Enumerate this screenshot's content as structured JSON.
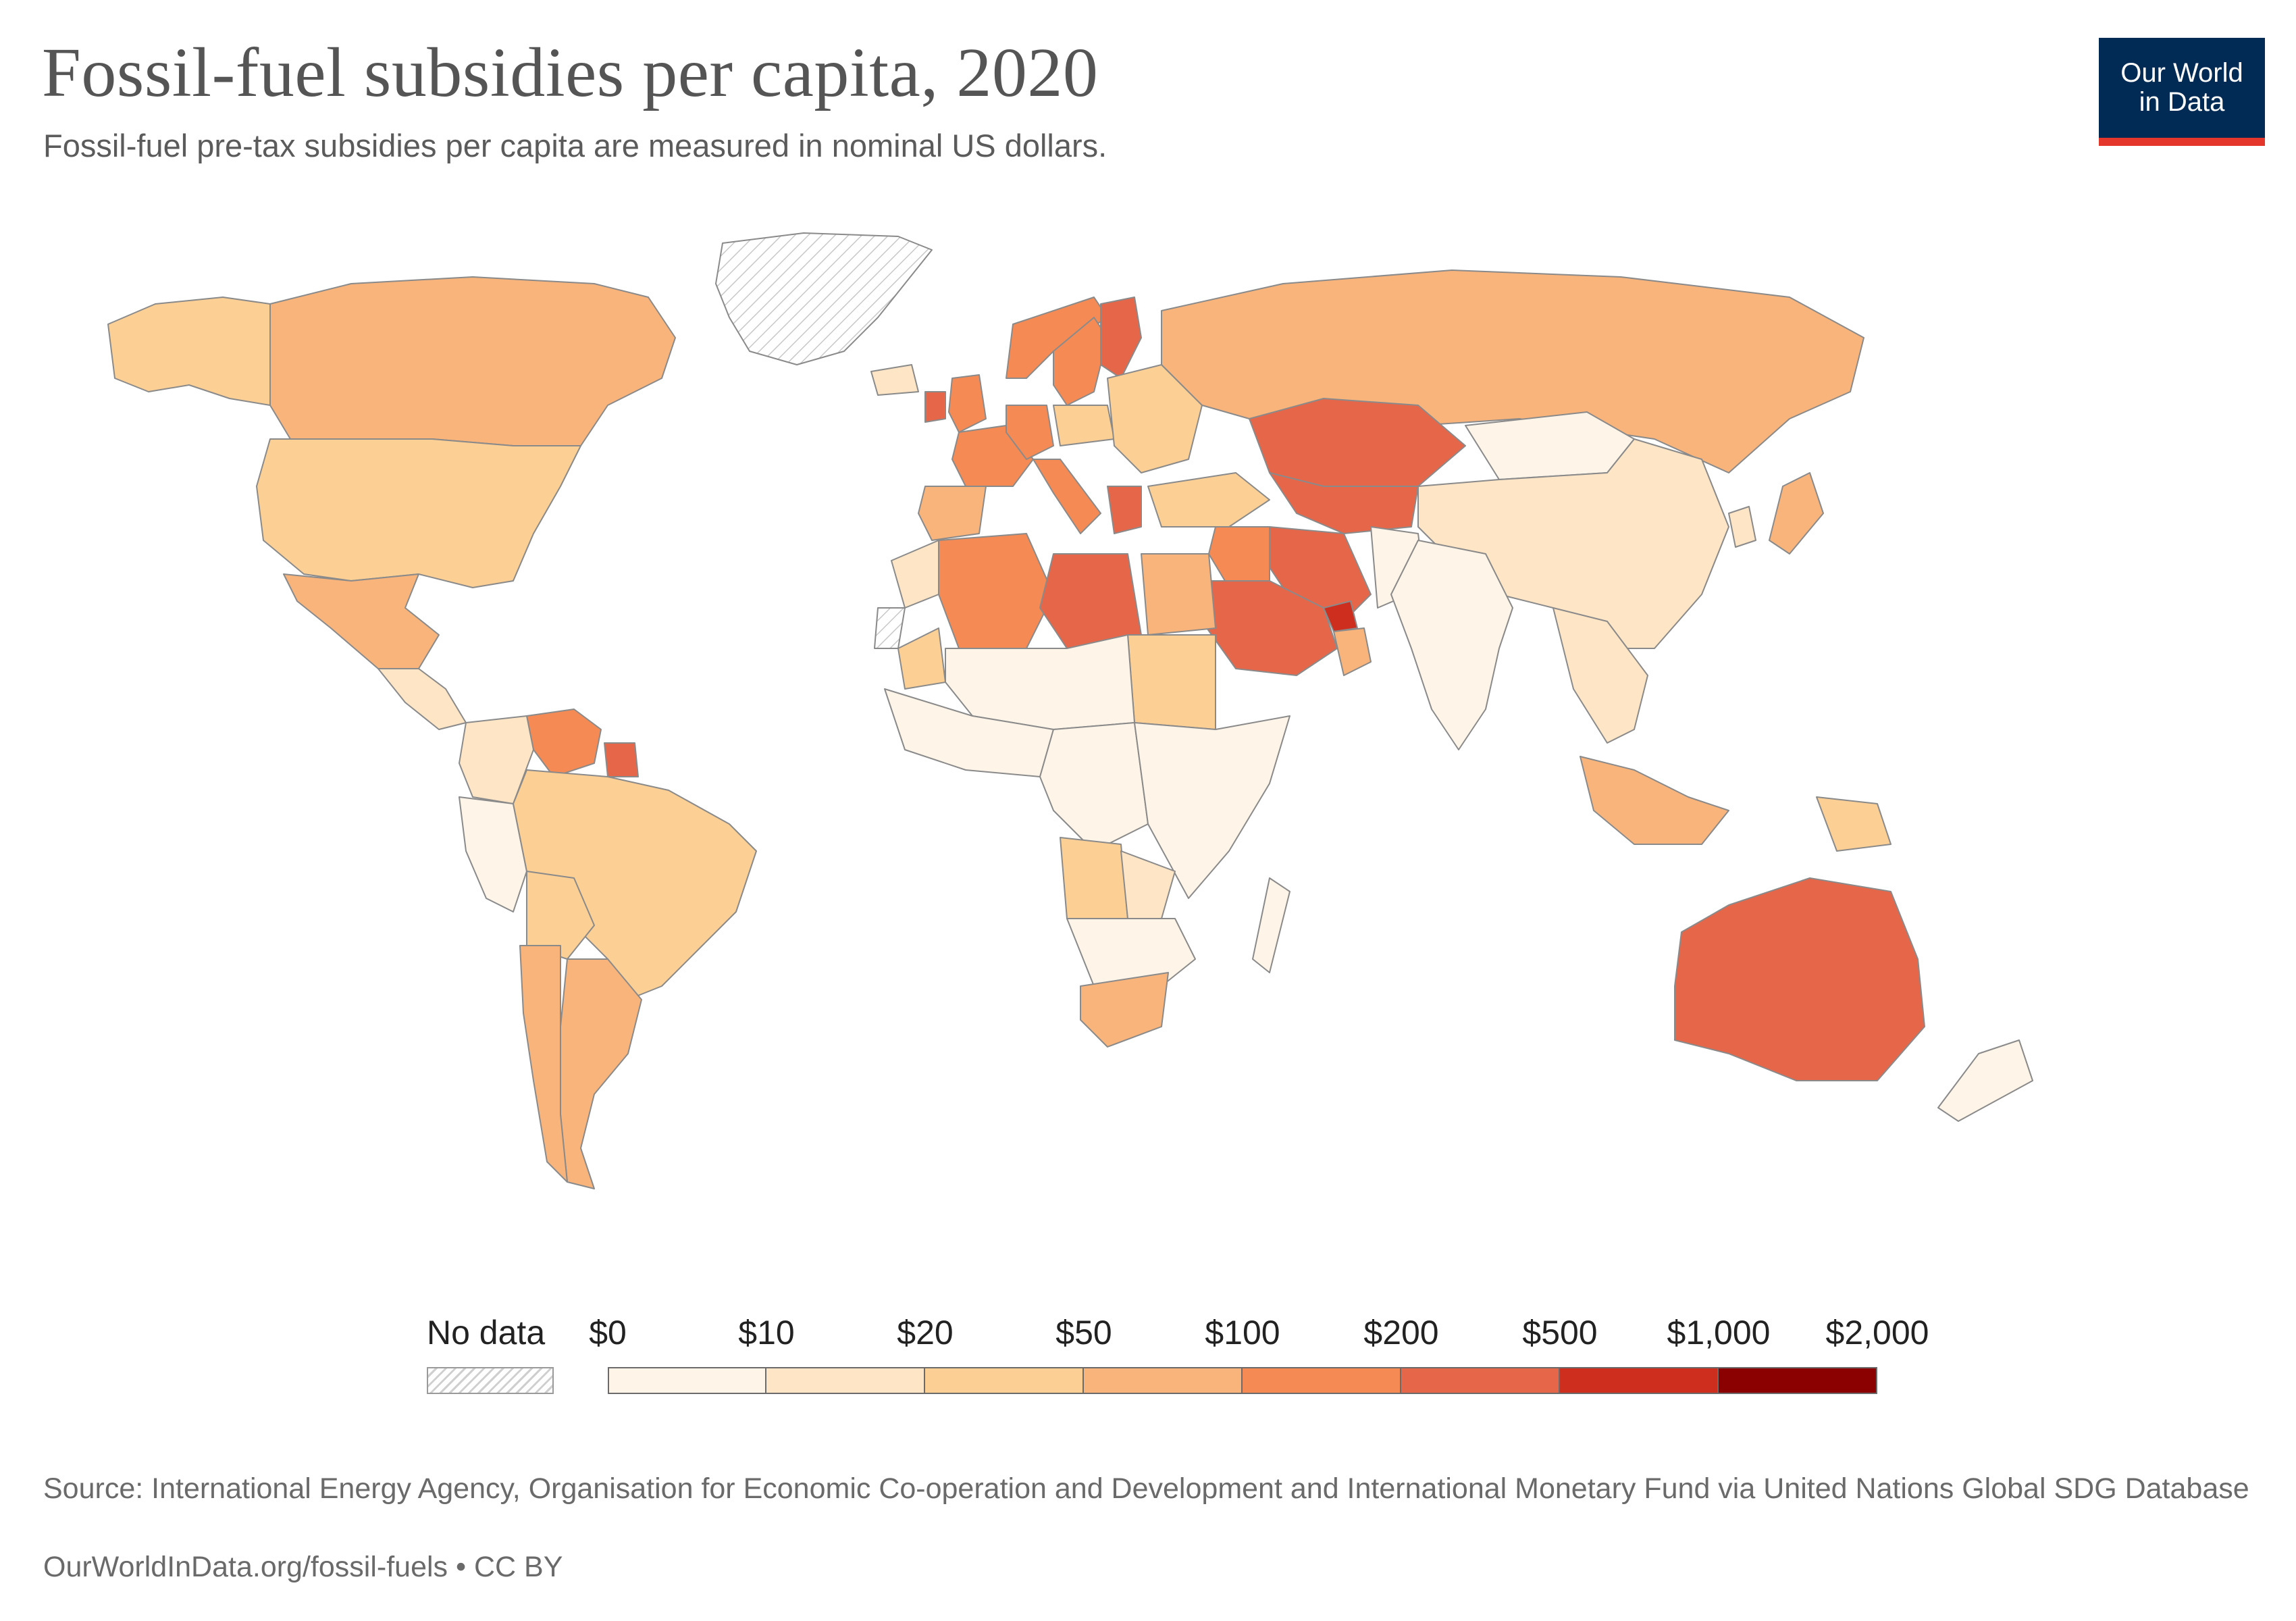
{
  "title": "Fossil-fuel subsidies per capita, 2020",
  "subtitle": "Fossil-fuel pre-tax subsidies per capita are measured in nominal US dollars.",
  "logo": {
    "line1": "Our World",
    "line2": "in Data",
    "bg_color": "#012A55",
    "accent_color": "#E5362B"
  },
  "legend": {
    "no_data_label": "No data",
    "thresholds": [
      "$0",
      "$10",
      "$20",
      "$50",
      "$100",
      "$200",
      "$500",
      "$1,000",
      "$2,000"
    ],
    "colors": [
      "#FEF4E8",
      "#FEE5C6",
      "#FCCF95",
      "#F9B47C",
      "#F58A54",
      "#E6664A",
      "#CD2E1E",
      "#8B0000"
    ]
  },
  "source": "Source: International Energy Agency, Organisation for Economic Co-operation and Development and International Monetary Fund via United Nations Global SDG Database",
  "credit": "OurWorldInData.org/fossil-fuels • CC BY",
  "map_regions": [
    {
      "name": "Greenland",
      "cls": "nodata"
    },
    {
      "name": "Alaska",
      "cls": 2
    },
    {
      "name": "Canada",
      "cls": 3
    },
    {
      "name": "United States",
      "cls": 2
    },
    {
      "name": "Mexico",
      "cls": 3
    },
    {
      "name": "Central America",
      "cls": 1
    },
    {
      "name": "Venezuela",
      "cls": 4
    },
    {
      "name": "Suriname",
      "cls": 5
    },
    {
      "name": "Colombia",
      "cls": 1
    },
    {
      "name": "Peru",
      "cls": 0
    },
    {
      "name": "Brazil",
      "cls": 2
    },
    {
      "name": "Bolivia",
      "cls": 2
    },
    {
      "name": "Argentina",
      "cls": 3
    },
    {
      "name": "Chile",
      "cls": 3
    },
    {
      "name": "Iceland",
      "cls": 1
    },
    {
      "name": "Norway",
      "cls": 4
    },
    {
      "name": "Sweden",
      "cls": 4
    },
    {
      "name": "Finland",
      "cls": 5
    },
    {
      "name": "Ireland",
      "cls": 5
    },
    {
      "name": "United Kingdom",
      "cls": 4
    },
    {
      "name": "France",
      "cls": 4
    },
    {
      "name": "Spain",
      "cls": 3
    },
    {
      "name": "Germany",
      "cls": 4
    },
    {
      "name": "Poland",
      "cls": 2
    },
    {
      "name": "Eastern Europe",
      "cls": 2
    },
    {
      "name": "Italy",
      "cls": 4
    },
    {
      "name": "Greece",
      "cls": 5
    },
    {
      "name": "Turkey",
      "cls": 2
    },
    {
      "name": "Russia",
      "cls": 3
    },
    {
      "name": "Kazakhstan",
      "cls": 5
    },
    {
      "name": "Central Asia",
      "cls": 5
    },
    {
      "name": "Mongolia",
      "cls": 0
    },
    {
      "name": "China",
      "cls": 1
    },
    {
      "name": "Japan",
      "cls": 3
    },
    {
      "name": "Korea",
      "cls": 1
    },
    {
      "name": "Iran",
      "cls": 5
    },
    {
      "name": "Iraq",
      "cls": 4
    },
    {
      "name": "Saudi Arabia",
      "cls": 5
    },
    {
      "name": "United Arab Emirates",
      "cls": 6
    },
    {
      "name": "Oman",
      "cls": 3
    },
    {
      "name": "India",
      "cls": 0
    },
    {
      "name": "Pakistan",
      "cls": 0
    },
    {
      "name": "Southeast Asia",
      "cls": 1
    },
    {
      "name": "Indonesia",
      "cls": 3
    },
    {
      "name": "Papua New Guinea",
      "cls": 2
    },
    {
      "name": "Australia",
      "cls": 5
    },
    {
      "name": "New Zealand",
      "cls": 0
    },
    {
      "name": "Morocco",
      "cls": 1
    },
    {
      "name": "Western Sahara",
      "cls": "nodata"
    },
    {
      "name": "Mauritania",
      "cls": 2
    },
    {
      "name": "Algeria",
      "cls": 4
    },
    {
      "name": "Libya",
      "cls": 5
    },
    {
      "name": "Egypt",
      "cls": 3
    },
    {
      "name": "Sudan",
      "cls": 2
    },
    {
      "name": "Sahel",
      "cls": 0
    },
    {
      "name": "West Africa",
      "cls": 0
    },
    {
      "name": "Central Africa",
      "cls": 0
    },
    {
      "name": "East Africa",
      "cls": 0
    },
    {
      "name": "Angola",
      "cls": 2
    },
    {
      "name": "Zambia",
      "cls": 1
    },
    {
      "name": "Southern Africa",
      "cls": 0
    },
    {
      "name": "South Africa",
      "cls": 3
    },
    {
      "name": "Madagascar",
      "cls": 0
    }
  ]
}
